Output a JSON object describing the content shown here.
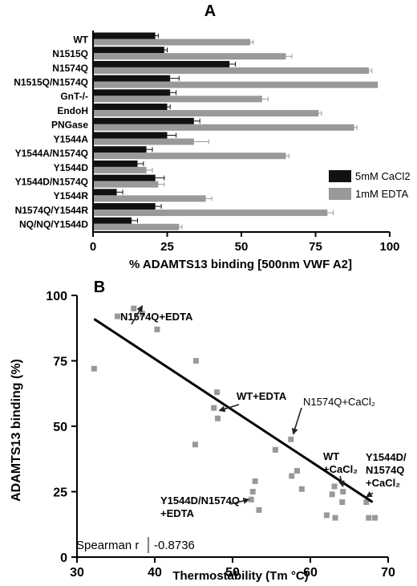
{
  "chart_data": [
    {
      "type": "bar",
      "orientation": "horizontal",
      "panel_label": "A",
      "categories": [
        "WT",
        "N1515Q",
        "N1574Q",
        "N1515Q/N1574Q",
        "GnT-/-",
        "EndoH",
        "PNGase",
        "Y1544A",
        "Y1544A/N1574Q",
        "Y1544D",
        "Y1544D/N1574Q",
        "Y1544R",
        "N1574Q/Y1544R",
        "NQ/NQ/Y1544D"
      ],
      "series": [
        {
          "name": "5mM CaCl2",
          "color": "#111111",
          "values": [
            21,
            24,
            46,
            26,
            26,
            25,
            34,
            25,
            18,
            15,
            21,
            8,
            21,
            13
          ],
          "errors": [
            1,
            1,
            2,
            3,
            2,
            1,
            2,
            3,
            2,
            2,
            3,
            2,
            2,
            2
          ]
        },
        {
          "name": "1mM EDTA",
          "color": "#999999",
          "values": [
            53,
            65,
            93,
            96,
            57,
            76,
            88,
            34,
            65,
            18,
            22,
            38,
            79,
            29
          ],
          "errors": [
            1,
            2,
            1,
            0,
            2,
            1,
            1,
            5,
            1,
            2,
            2,
            2,
            2,
            1
          ]
        }
      ],
      "xlabel": "% ADAMTS13 binding [500nm VWF A2]",
      "xlim": [
        0,
        100
      ],
      "xticks": [
        0,
        25,
        50,
        75,
        100
      ],
      "legend_position": "right"
    },
    {
      "type": "scatter",
      "panel_label": "B",
      "xlabel": "Thermostability (Tm °C)",
      "ylabel": "ADAMTS13 binding (%)",
      "xlim": [
        30,
        70
      ],
      "ylim": [
        0,
        100
      ],
      "xticks": [
        30,
        40,
        50,
        60,
        70
      ],
      "yticks": [
        0,
        25,
        50,
        75,
        100
      ],
      "point_color": "#999999",
      "points": [
        {
          "x": 32.2,
          "y": 72
        },
        {
          "x": 35.2,
          "y": 92
        },
        {
          "x": 37.3,
          "y": 95
        },
        {
          "x": 38.4,
          "y": 93
        },
        {
          "x": 40.3,
          "y": 87
        },
        {
          "x": 45.2,
          "y": 43
        },
        {
          "x": 45.3,
          "y": 75
        },
        {
          "x": 47.6,
          "y": 57
        },
        {
          "x": 48,
          "y": 63
        },
        {
          "x": 48.1,
          "y": 53
        },
        {
          "x": 52.4,
          "y": 22
        },
        {
          "x": 52.6,
          "y": 25
        },
        {
          "x": 52.9,
          "y": 29
        },
        {
          "x": 53.4,
          "y": 18
        },
        {
          "x": 55.5,
          "y": 41
        },
        {
          "x": 57.5,
          "y": 45
        },
        {
          "x": 57.6,
          "y": 31
        },
        {
          "x": 58.3,
          "y": 33
        },
        {
          "x": 58.9,
          "y": 26
        },
        {
          "x": 62.1,
          "y": 16
        },
        {
          "x": 62.8,
          "y": 24
        },
        {
          "x": 63.1,
          "y": 27
        },
        {
          "x": 63.2,
          "y": 15
        },
        {
          "x": 64.1,
          "y": 21
        },
        {
          "x": 64.2,
          "y": 25
        },
        {
          "x": 67.2,
          "y": 21
        },
        {
          "x": 67.5,
          "y": 15
        },
        {
          "x": 68.3,
          "y": 15
        }
      ],
      "fit_line": {
        "x": [
          32.2,
          68
        ],
        "y": [
          91,
          21
        ]
      },
      "annotations": [
        {
          "text": [
            "N1574Q+EDTA"
          ],
          "color": "#777777",
          "bold": true,
          "arrow_to": {
            "x": 38.4,
            "y": 96
          }
        },
        {
          "text": [
            "WT+EDTA"
          ],
          "color": "#000000",
          "bold": true,
          "arrow_to": {
            "x": 48.3,
            "y": 56
          }
        },
        {
          "text": [
            "N1574Q+CaCl₂"
          ],
          "color": "#777777",
          "bold": false,
          "arrow_to": {
            "x": 57.8,
            "y": 47
          }
        },
        {
          "text": [
            "WT",
            "+CaCl₂"
          ],
          "color": "#000000",
          "bold": true,
          "arrow_to": {
            "x": 64.2,
            "y": 27
          }
        },
        {
          "text": [
            "Y1544D/",
            "N1574Q",
            "+CaCl₂"
          ],
          "color": "#000000",
          "bold": true,
          "arrow_to": {
            "x": 67.2,
            "y": 23
          }
        },
        {
          "text": [
            "Y1544D/N1574Q",
            "+EDTA"
          ],
          "color": "#000000",
          "bold": true,
          "arrow_to": {
            "x": 52.1,
            "y": 22
          }
        }
      ],
      "stat_label": "Spearman r",
      "stat_value": "-0.8736"
    }
  ]
}
